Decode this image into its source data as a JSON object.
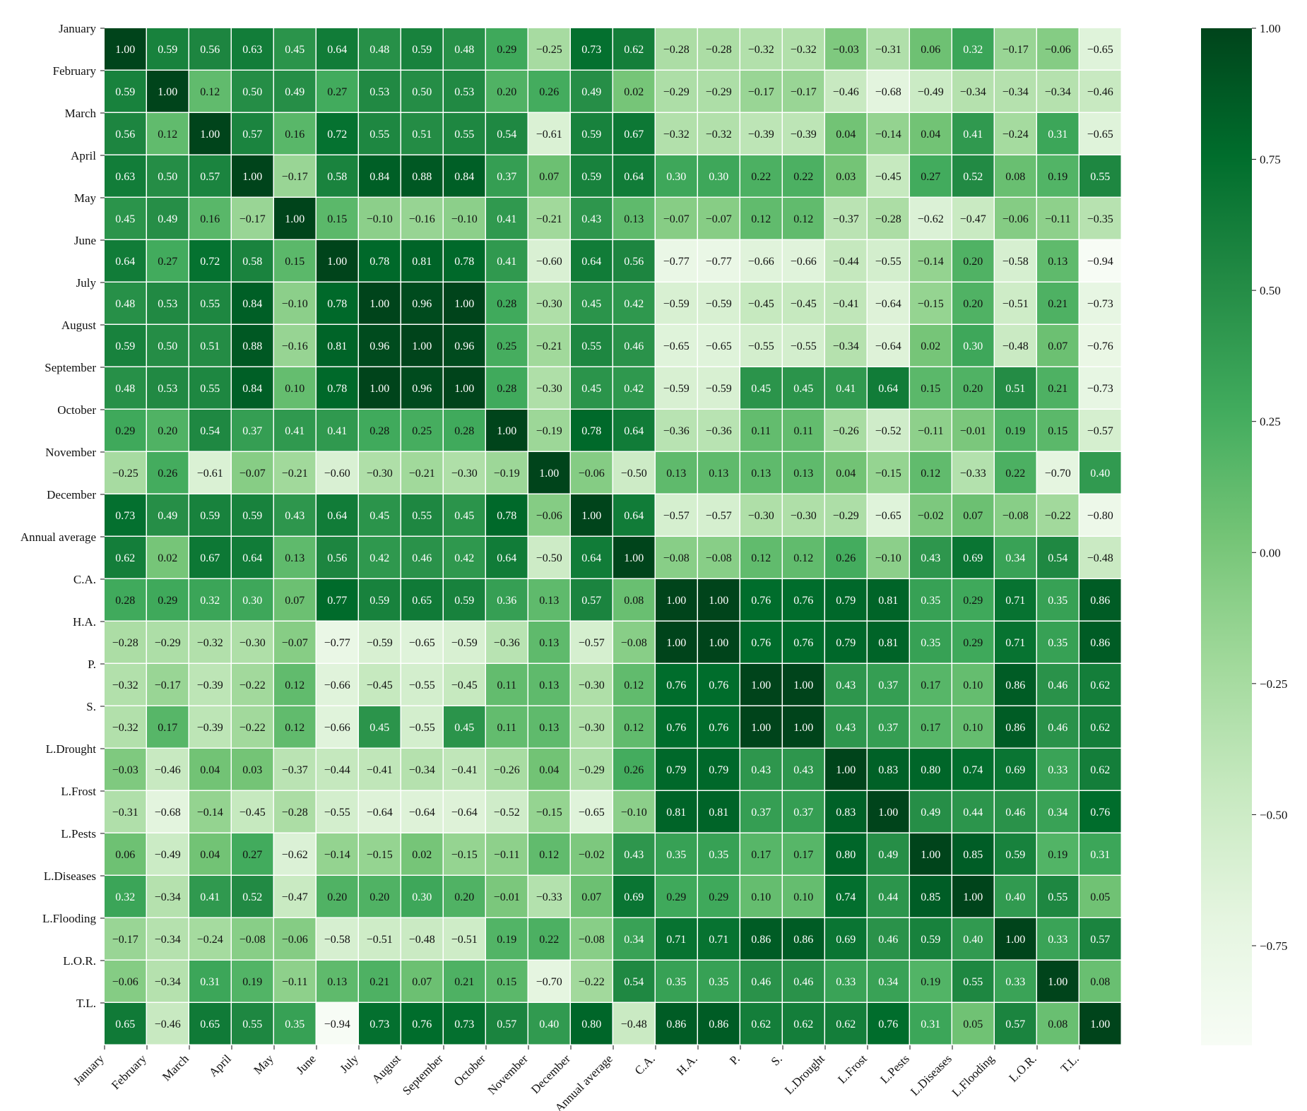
{
  "chart_data": {
    "type": "heatmap",
    "labels": [
      "January",
      "February",
      "March",
      "April",
      "May",
      "June",
      "July",
      "August",
      "September",
      "October",
      "November",
      "December",
      "Annual average",
      "C.A.",
      "H.A.",
      "P.",
      "S.",
      "L.Drought",
      "L.Frost",
      "L.Pests",
      "L.Diseases",
      "L.Flooding",
      "L.O.R.",
      "T.L."
    ],
    "matrix": [
      [
        1.0,
        0.59,
        0.56,
        0.63,
        0.45,
        0.64,
        0.48,
        0.59,
        0.48,
        0.29,
        -0.25,
        0.73,
        0.62,
        -0.28,
        -0.28,
        -0.32,
        -0.32,
        -0.03,
        -0.31,
        0.06,
        0.32,
        -0.17,
        -0.06,
        -0.65
      ],
      [
        0.59,
        1.0,
        0.12,
        0.5,
        0.49,
        0.27,
        0.53,
        0.5,
        0.53,
        0.2,
        0.26,
        0.49,
        0.02,
        -0.29,
        -0.29,
        -0.17,
        -0.17,
        -0.46,
        -0.68,
        -0.49,
        -0.34,
        -0.34,
        -0.34,
        -0.46
      ],
      [
        0.56,
        0.12,
        1.0,
        0.57,
        0.16,
        0.72,
        0.55,
        0.51,
        0.55,
        0.54,
        -0.61,
        0.59,
        0.67,
        -0.32,
        -0.32,
        -0.39,
        -0.39,
        0.04,
        -0.14,
        0.04,
        0.41,
        -0.24,
        0.31,
        -0.65
      ],
      [
        0.63,
        0.5,
        0.57,
        1.0,
        -0.17,
        0.58,
        0.84,
        0.88,
        0.84,
        0.37,
        0.07,
        0.59,
        0.64,
        0.3,
        0.3,
        0.22,
        0.22,
        0.03,
        -0.45,
        0.27,
        0.52,
        0.08,
        0.19,
        0.55
      ],
      [
        0.45,
        0.49,
        0.16,
        -0.17,
        1.0,
        0.15,
        -0.1,
        -0.16,
        -0.1,
        0.41,
        -0.21,
        0.43,
        0.13,
        -0.07,
        -0.07,
        0.12,
        0.12,
        -0.37,
        -0.28,
        -0.62,
        -0.47,
        -0.06,
        -0.11,
        -0.35
      ],
      [
        0.64,
        0.27,
        0.72,
        0.58,
        0.15,
        1.0,
        0.78,
        0.81,
        0.78,
        0.41,
        -0.6,
        0.64,
        0.56,
        -0.77,
        -0.77,
        -0.66,
        -0.66,
        -0.44,
        -0.55,
        -0.14,
        0.2,
        -0.58,
        0.13,
        -0.94
      ],
      [
        0.48,
        0.53,
        0.55,
        0.84,
        -0.1,
        0.78,
        1.0,
        0.96,
        1.0,
        0.28,
        -0.3,
        0.45,
        0.42,
        -0.59,
        -0.59,
        -0.45,
        -0.45,
        -0.41,
        -0.64,
        -0.15,
        0.2,
        -0.51,
        0.21,
        -0.73
      ],
      [
        0.59,
        0.5,
        0.51,
        0.88,
        -0.16,
        0.81,
        0.96,
        1.0,
        0.96,
        0.25,
        -0.21,
        0.55,
        0.46,
        -0.65,
        -0.65,
        -0.55,
        -0.55,
        -0.34,
        -0.64,
        0.02,
        0.3,
        -0.48,
        0.07,
        -0.76
      ],
      [
        0.48,
        0.53,
        0.55,
        0.84,
        0.1,
        0.78,
        1.0,
        0.96,
        1.0,
        0.28,
        -0.3,
        0.45,
        0.42,
        -0.59,
        -0.59,
        0.45,
        0.45,
        0.41,
        0.64,
        0.15,
        0.2,
        0.51,
        0.21,
        -0.73
      ],
      [
        0.29,
        0.2,
        0.54,
        0.37,
        0.41,
        0.41,
        0.28,
        0.25,
        0.28,
        1.0,
        -0.19,
        0.78,
        0.64,
        -0.36,
        -0.36,
        0.11,
        0.11,
        -0.26,
        -0.52,
        -0.11,
        -0.01,
        0.19,
        0.15,
        -0.57
      ],
      [
        -0.25,
        0.26,
        -0.61,
        -0.07,
        -0.21,
        -0.6,
        -0.3,
        -0.21,
        -0.3,
        -0.19,
        1.0,
        -0.06,
        -0.5,
        0.13,
        0.13,
        0.13,
        0.13,
        0.04,
        -0.15,
        0.12,
        -0.33,
        0.22,
        -0.7,
        0.4
      ],
      [
        0.73,
        0.49,
        0.59,
        0.59,
        0.43,
        0.64,
        0.45,
        0.55,
        0.45,
        0.78,
        -0.06,
        1.0,
        0.64,
        -0.57,
        -0.57,
        -0.3,
        -0.3,
        -0.29,
        -0.65,
        -0.02,
        0.07,
        -0.08,
        -0.22,
        -0.8
      ],
      [
        0.62,
        0.02,
        0.67,
        0.64,
        0.13,
        0.56,
        0.42,
        0.46,
        0.42,
        0.64,
        -0.5,
        0.64,
        1.0,
        -0.08,
        -0.08,
        0.12,
        0.12,
        0.26,
        -0.1,
        0.43,
        0.69,
        0.34,
        0.54,
        -0.48
      ],
      [
        0.28,
        0.29,
        0.32,
        0.3,
        0.07,
        0.77,
        0.59,
        0.65,
        0.59,
        0.36,
        0.13,
        0.57,
        0.08,
        1.0,
        1.0,
        0.76,
        0.76,
        0.79,
        0.81,
        0.35,
        0.29,
        0.71,
        0.35,
        0.86
      ],
      [
        -0.28,
        -0.29,
        -0.32,
        -0.3,
        -0.07,
        -0.77,
        -0.59,
        -0.65,
        -0.59,
        -0.36,
        0.13,
        -0.57,
        -0.08,
        1.0,
        1.0,
        0.76,
        0.76,
        0.79,
        0.81,
        0.35,
        0.29,
        0.71,
        0.35,
        0.86
      ],
      [
        -0.32,
        -0.17,
        -0.39,
        -0.22,
        0.12,
        -0.66,
        -0.45,
        -0.55,
        -0.45,
        0.11,
        0.13,
        -0.3,
        0.12,
        0.76,
        0.76,
        1.0,
        1.0,
        0.43,
        0.37,
        0.17,
        0.1,
        0.86,
        0.46,
        0.62
      ],
      [
        -0.32,
        0.17,
        -0.39,
        -0.22,
        0.12,
        -0.66,
        0.45,
        -0.55,
        0.45,
        0.11,
        0.13,
        -0.3,
        0.12,
        0.76,
        0.76,
        1.0,
        1.0,
        0.43,
        0.37,
        0.17,
        0.1,
        0.86,
        0.46,
        0.62
      ],
      [
        -0.03,
        -0.46,
        0.04,
        0.03,
        -0.37,
        -0.44,
        -0.41,
        -0.34,
        -0.41,
        -0.26,
        0.04,
        -0.29,
        0.26,
        0.79,
        0.79,
        0.43,
        0.43,
        1.0,
        0.83,
        0.8,
        0.74,
        0.69,
        0.33,
        0.62
      ],
      [
        -0.31,
        -0.68,
        -0.14,
        -0.45,
        -0.28,
        -0.55,
        -0.64,
        -0.64,
        -0.64,
        -0.52,
        -0.15,
        -0.65,
        -0.1,
        0.81,
        0.81,
        0.37,
        0.37,
        0.83,
        1.0,
        0.49,
        0.44,
        0.46,
        0.34,
        0.76
      ],
      [
        0.06,
        -0.49,
        0.04,
        0.27,
        -0.62,
        -0.14,
        -0.15,
        0.02,
        -0.15,
        -0.11,
        0.12,
        -0.02,
        0.43,
        0.35,
        0.35,
        0.17,
        0.17,
        0.8,
        0.49,
        1.0,
        0.85,
        0.59,
        0.19,
        0.31
      ],
      [
        0.32,
        -0.34,
        0.41,
        0.52,
        -0.47,
        0.2,
        0.2,
        0.3,
        0.2,
        -0.01,
        -0.33,
        0.07,
        0.69,
        0.29,
        0.29,
        0.1,
        0.1,
        0.74,
        0.44,
        0.85,
        1.0,
        0.4,
        0.55,
        0.05
      ],
      [
        -0.17,
        -0.34,
        -0.24,
        -0.08,
        -0.06,
        -0.58,
        -0.51,
        -0.48,
        -0.51,
        0.19,
        0.22,
        -0.08,
        0.34,
        0.71,
        0.71,
        0.86,
        0.86,
        0.69,
        0.46,
        0.59,
        0.4,
        1.0,
        0.33,
        0.57
      ],
      [
        -0.06,
        -0.34,
        0.31,
        0.19,
        -0.11,
        0.13,
        0.21,
        0.07,
        0.21,
        0.15,
        -0.7,
        -0.22,
        0.54,
        0.35,
        0.35,
        0.46,
        0.46,
        0.33,
        0.34,
        0.19,
        0.55,
        0.33,
        1.0,
        0.08
      ],
      [
        0.65,
        -0.46,
        0.65,
        0.55,
        0.35,
        -0.94,
        0.73,
        0.76,
        0.73,
        0.57,
        0.4,
        0.8,
        -0.48,
        0.86,
        0.86,
        0.62,
        0.62,
        0.62,
        0.76,
        0.31,
        0.05,
        0.57,
        0.08,
        1.0
      ]
    ],
    "colormap": "Greens",
    "color_range": [
      -0.94,
      1.0
    ],
    "colorbar_ticks": [
      1.0,
      0.75,
      0.5,
      0.25,
      0.0,
      -0.25,
      -0.5,
      -0.75
    ],
    "colorbar_tick_labels": [
      "1.00",
      "0.75",
      "0.50",
      "0.25",
      "0.00",
      "−0.25",
      "−0.50",
      "−0.75"
    ],
    "annotations": "cell values shown with two decimals",
    "colors": {
      "low": "#f7fcf5",
      "high": "#00441b",
      "grid": "#ffffff"
    },
    "title": "",
    "xlabel": "",
    "ylabel": ""
  }
}
